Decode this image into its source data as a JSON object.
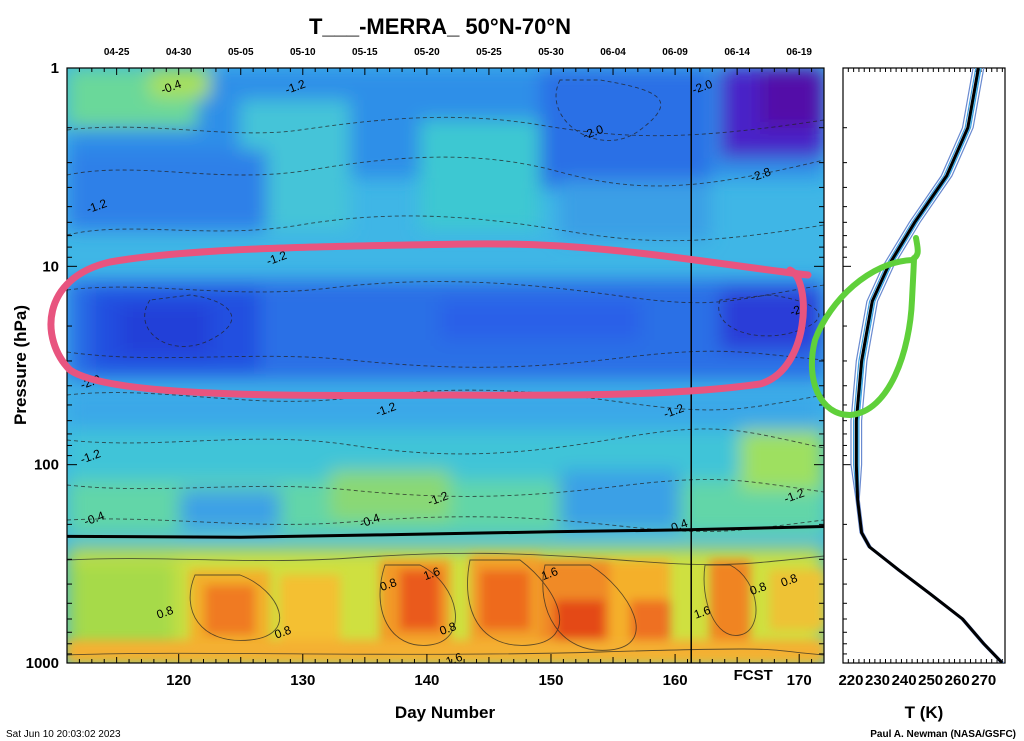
{
  "chart_data": [
    {
      "type": "heatmap",
      "title": "T___-MERRA_ 50°N-70°N",
      "xlabel": "Day Number",
      "ylabel": "Pressure (hPa)",
      "xlim": [
        111,
        172
      ],
      "ylim": [
        1000,
        1
      ],
      "yscale": "log",
      "x_ticks": [
        120,
        130,
        140,
        150,
        160,
        170
      ],
      "y_ticks": [
        1,
        10,
        100,
        1000
      ],
      "top_date_ticks": [
        {
          "label": "04-25",
          "day": 115
        },
        {
          "label": "04-30",
          "day": 120
        },
        {
          "label": "05-05",
          "day": 125
        },
        {
          "label": "05-10",
          "day": 130
        },
        {
          "label": "05-15",
          "day": 135
        },
        {
          "label": "05-20",
          "day": 140
        },
        {
          "label": "05-25",
          "day": 145
        },
        {
          "label": "05-30",
          "day": 150
        },
        {
          "label": "06-04",
          "day": 155
        },
        {
          "label": "06-09",
          "day": 160
        },
        {
          "label": "06-14",
          "day": 165
        },
        {
          "label": "06-19",
          "day": 170
        }
      ],
      "forecast_line_day": 161.3,
      "forecast_label": "FCST",
      "tropopause_line": [
        {
          "day": 111,
          "p": 230
        },
        {
          "day": 125,
          "p": 232
        },
        {
          "day": 136,
          "p": 226
        },
        {
          "day": 150,
          "p": 218
        },
        {
          "day": 161,
          "p": 213
        },
        {
          "day": 172,
          "p": 205
        }
      ],
      "contour_labels": [
        {
          "text": "-0.4",
          "day": 119.5,
          "p": 1.3
        },
        {
          "text": "-1.2",
          "day": 129.5,
          "p": 1.3
        },
        {
          "text": "-2.0",
          "day": 153.5,
          "p": 2.2
        },
        {
          "text": "-2.0",
          "day": 162.3,
          "p": 1.3
        },
        {
          "text": "-2.8",
          "day": 167,
          "p": 3.6
        },
        {
          "text": "-1.2",
          "day": 113.5,
          "p": 5.2
        },
        {
          "text": "-1.2",
          "day": 128,
          "p": 9.5
        },
        {
          "text": "-2.0",
          "day": 113,
          "p": 40
        },
        {
          "text": "-2",
          "day": 169.8,
          "p": 17.5
        },
        {
          "text": "-1.2",
          "day": 136.8,
          "p": 55
        },
        {
          "text": "-1.2",
          "day": 160,
          "p": 56
        },
        {
          "text": "-1.2",
          "day": 113,
          "p": 95
        },
        {
          "text": "-1.2",
          "day": 141,
          "p": 155
        },
        {
          "text": "-1.2",
          "day": 169.7,
          "p": 150
        },
        {
          "text": "-0.4",
          "day": 113.3,
          "p": 195
        },
        {
          "text": "-0.4",
          "day": 135.5,
          "p": 200
        },
        {
          "text": "-0.4",
          "day": 160.3,
          "p": 213
        },
        {
          "text": "1.6",
          "day": 140.5,
          "p": 370
        },
        {
          "text": "1.6",
          "day": 150,
          "p": 370
        },
        {
          "text": "0.8",
          "day": 137,
          "p": 420
        },
        {
          "text": "0.8",
          "day": 119,
          "p": 580
        },
        {
          "text": "0.8",
          "day": 128.5,
          "p": 730
        },
        {
          "text": "0.8",
          "day": 141.8,
          "p": 700
        },
        {
          "text": "1.6",
          "day": 162.3,
          "p": 580
        },
        {
          "text": "0.8",
          "day": 166.8,
          "p": 440
        },
        {
          "text": "0.8",
          "day": 169.3,
          "p": 400
        },
        {
          "text": "1.6",
          "day": 142.3,
          "p": 1000
        }
      ]
    },
    {
      "type": "line",
      "xlabel": "T (K)",
      "ylabel": "",
      "xlim": [
        217,
        278
      ],
      "ylim": [
        1000,
        1
      ],
      "yscale": "log",
      "x_ticks": [
        220,
        230,
        240,
        250,
        260,
        270
      ],
      "series": [
        {
          "color": "#000000",
          "points": [
            {
              "t": 277,
              "p": 1000
            },
            {
              "t": 270,
              "p": 800
            },
            {
              "t": 262,
              "p": 600
            },
            {
              "t": 250,
              "p": 450
            },
            {
              "t": 238,
              "p": 340
            },
            {
              "t": 227,
              "p": 260
            },
            {
              "t": 224,
              "p": 220
            },
            {
              "t": 222.5,
              "p": 150
            },
            {
              "t": 222,
              "p": 100
            },
            {
              "t": 222,
              "p": 60
            },
            {
              "t": 224,
              "p": 30
            },
            {
              "t": 228,
              "p": 15
            },
            {
              "t": 234,
              "p": 10
            },
            {
              "t": 244,
              "p": 6
            },
            {
              "t": 256,
              "p": 3.5
            },
            {
              "t": 264,
              "p": 2
            },
            {
              "t": 268,
              "p": 1
            }
          ]
        }
      ]
    }
  ],
  "footer": {
    "timestamp": "Sat Jun 10 20:03:02 2023",
    "credit": "Paul A. Newman (NASA/GSFC)"
  },
  "annotations": {
    "pink_ellipse_color": "#e8547f",
    "green_loop_color": "#5fd03a"
  }
}
